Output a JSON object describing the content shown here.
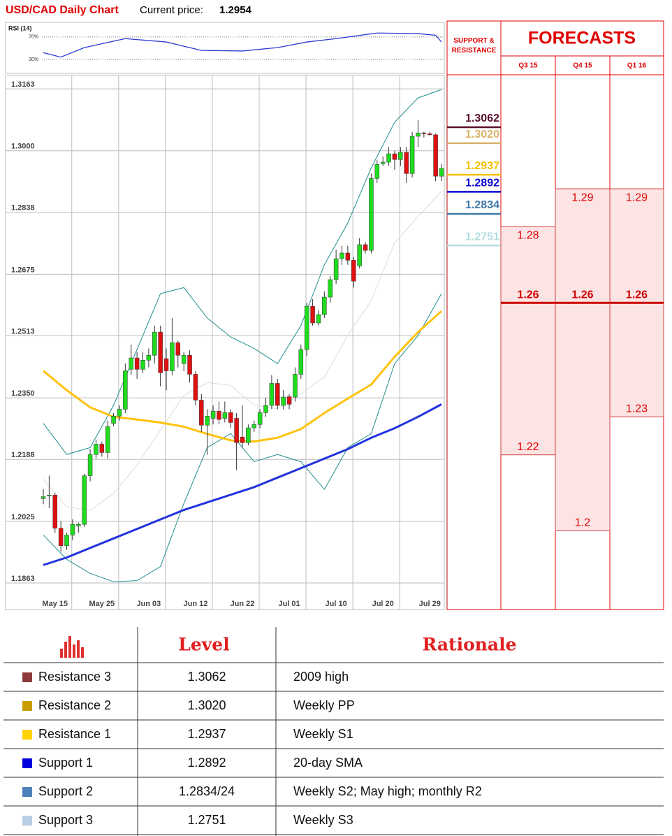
{
  "header": {
    "title": "USD/CAD Daily Chart",
    "price_label": "Current price:",
    "price": "1.2954"
  },
  "chart_data": [
    {
      "type": "line",
      "title": "RSI (14)",
      "color": "#2b3bd0",
      "x": [
        0,
        3,
        7,
        14,
        21,
        27,
        34,
        40,
        45,
        50,
        57,
        64,
        67,
        68
      ],
      "values": [
        42,
        34,
        51,
        67,
        61,
        46,
        45,
        51,
        61,
        67,
        77,
        76,
        73,
        61
      ],
      "xlim": [
        0,
        68
      ],
      "ylim": [
        5,
        96
      ],
      "yticks": [
        {
          "value": 70,
          "label": "70%"
        },
        {
          "value": 30,
          "label": "30%"
        }
      ]
    },
    {
      "type": "candlestick",
      "up_color": "#1fdc1f",
      "down_color": "#e01010",
      "grid": true,
      "categories": [
        null,
        null,
        "May 15",
        null,
        null,
        null,
        null,
        null,
        null,
        null,
        "May 25",
        null,
        null,
        null,
        null,
        null,
        null,
        null,
        "Jun 03",
        null,
        null,
        null,
        null,
        null,
        null,
        null,
        "Jun 12",
        null,
        null,
        null,
        null,
        null,
        null,
        null,
        "Jun 22",
        null,
        null,
        null,
        null,
        null,
        null,
        null,
        "Jul 01",
        null,
        null,
        null,
        null,
        null,
        null,
        null,
        "Jul 10",
        null,
        null,
        null,
        null,
        null,
        null,
        null,
        "Jul 20",
        null,
        null,
        null,
        null,
        null,
        null,
        null,
        "Jul 29",
        null,
        null
      ],
      "open": [
        1.2085,
        1.2092,
        1.2094,
        1.2007,
        1.1961,
        1.1989,
        1.2013,
        1.2017,
        1.2145,
        1.2201,
        1.2228,
        1.2206,
        1.2283,
        1.2302,
        1.232,
        1.2425,
        1.2455,
        1.2425,
        1.2449,
        1.2462,
        1.2523,
        1.2453,
        1.2421,
        1.2495,
        1.244,
        1.2462,
        1.2412,
        1.2344,
        1.2278,
        1.2296,
        1.2315,
        1.2296,
        1.2311,
        1.2296,
        1.2247,
        1.2232,
        1.2271,
        1.228,
        1.2311,
        1.233,
        1.2388,
        1.233,
        1.2353,
        1.2352,
        1.2412,
        1.2477,
        1.2591,
        1.2547,
        1.2569,
        1.2615,
        1.2661,
        1.2716,
        1.2731,
        1.2712,
        1.2697,
        1.2753,
        1.2738,
        1.2927,
        1.2966,
        1.297,
        1.2992,
        1.2977,
        1.2996,
        1.294,
        1.3038,
        1.3047,
        1.3045,
        1.3042,
        1.2933
      ],
      "high": [
        1.211,
        1.2145,
        1.21,
        1.2025,
        1.1995,
        1.203,
        1.2022,
        1.215,
        1.2215,
        1.224,
        1.2235,
        1.229,
        1.231,
        1.233,
        1.244,
        1.249,
        1.247,
        1.247,
        1.248,
        1.254,
        1.254,
        1.248,
        1.256,
        1.25,
        1.247,
        1.2475,
        1.242,
        1.236,
        1.232,
        1.233,
        1.234,
        1.234,
        1.232,
        1.231,
        1.233,
        1.228,
        1.229,
        1.232,
        1.235,
        1.241,
        1.24,
        1.237,
        1.236,
        1.243,
        1.249,
        1.26,
        1.261,
        1.258,
        1.263,
        1.267,
        1.274,
        1.275,
        1.275,
        1.272,
        1.277,
        1.276,
        1.294,
        1.2975,
        1.2985,
        1.301,
        1.3,
        1.301,
        1.301,
        1.305,
        1.308,
        1.305,
        1.305,
        1.3045,
        1.2965
      ],
      "low": [
        1.207,
        1.206,
        1.1995,
        1.1945,
        1.195,
        1.1975,
        1.1995,
        1.201,
        1.213,
        1.219,
        1.2195,
        1.219,
        1.2275,
        1.229,
        1.231,
        1.241,
        1.24,
        1.2415,
        1.243,
        1.244,
        1.238,
        1.237,
        1.241,
        1.243,
        1.242,
        1.239,
        1.233,
        1.226,
        1.22,
        1.228,
        1.228,
        1.2285,
        1.227,
        1.216,
        1.222,
        1.2225,
        1.226,
        1.227,
        1.23,
        1.232,
        1.232,
        1.232,
        1.232,
        1.234,
        1.24,
        1.246,
        1.254,
        1.254,
        1.256,
        1.26,
        1.265,
        1.27,
        1.27,
        1.264,
        1.269,
        1.273,
        1.273,
        1.2915,
        1.296,
        1.296,
        1.295,
        1.296,
        1.2915,
        1.293,
        1.301,
        1.3035,
        1.304,
        1.292,
        1.292
      ],
      "close": [
        1.209,
        1.2094,
        1.2007,
        1.1961,
        1.1989,
        1.2017,
        1.2017,
        1.2145,
        1.2201,
        1.2228,
        1.2206,
        1.2274,
        1.2302,
        1.232,
        1.2421,
        1.2455,
        1.2425,
        1.2449,
        1.2462,
        1.2523,
        1.2416,
        1.2421,
        1.2495,
        1.2462,
        1.2462,
        1.2412,
        1.2344,
        1.2278,
        1.2302,
        1.2315,
        1.2293,
        1.2311,
        1.2285,
        1.2232,
        1.2232,
        1.2271,
        1.228,
        1.2311,
        1.233,
        1.2388,
        1.233,
        1.2352,
        1.2333,
        1.2412,
        1.2477,
        1.2591,
        1.2547,
        1.2569,
        1.2615,
        1.2661,
        1.2716,
        1.2731,
        1.2712,
        1.2657,
        1.2753,
        1.2738,
        1.2927,
        1.2964,
        1.297,
        1.2992,
        1.2977,
        1.2996,
        1.294,
        1.3038,
        1.3047,
        1.3045,
        1.3042,
        1.2933,
        1.2954
      ],
      "lines": [
        {
          "color": "#dcdcdc",
          "width": 1,
          "x": [
            0,
            4,
            8,
            12,
            16,
            20,
            24,
            28,
            32,
            36,
            40,
            44,
            48,
            52,
            56,
            60,
            64,
            68
          ],
          "values": [
            1.2136,
            1.2063,
            1.2054,
            1.2098,
            1.2173,
            1.2265,
            1.2356,
            1.239,
            1.2383,
            1.2331,
            1.2321,
            1.2361,
            1.2405,
            1.2515,
            1.2606,
            1.2758,
            1.2827,
            1.2893
          ]
        },
        {
          "color": "#1f8c8c",
          "width": 1,
          "x": [
            0,
            4,
            8,
            12,
            16,
            20,
            24,
            28,
            32,
            36,
            40,
            44,
            48,
            52,
            56,
            60,
            64,
            68
          ],
          "values": [
            1.2283,
            1.2201,
            1.2219,
            1.233,
            1.2477,
            1.2624,
            1.264,
            1.256,
            1.251,
            1.248,
            1.244,
            1.254,
            1.27,
            1.281,
            1.2955,
            1.3075,
            1.3139,
            1.3161
          ]
        },
        {
          "color": "#1f8c8c",
          "width": 1,
          "x": [
            0,
            4,
            8,
            12,
            16,
            20,
            24,
            28,
            32,
            36,
            40,
            44,
            48,
            52,
            56,
            60,
            64,
            68
          ],
          "values": [
            1.1989,
            1.1925,
            1.1888,
            1.1866,
            1.1869,
            1.1906,
            1.2072,
            1.2219,
            1.2256,
            1.2182,
            1.2201,
            1.2182,
            1.2109,
            1.2219,
            1.2256,
            1.244,
            1.2514,
            1.2624
          ]
        },
        {
          "color": "#ffc20e",
          "width": 3,
          "x": [
            0,
            4,
            8,
            12,
            16,
            20,
            24,
            28,
            32,
            36,
            40,
            44,
            48,
            52,
            56,
            60,
            64,
            68
          ],
          "values": [
            1.2421,
            1.237,
            1.2325,
            1.23,
            1.2293,
            1.2285,
            1.2274,
            1.2255,
            1.2238,
            1.2235,
            1.2245,
            1.2268,
            1.231,
            1.2348,
            1.2385,
            1.2458,
            1.2523,
            1.2578
          ]
        },
        {
          "color": "#2233dd",
          "width": 3,
          "x": [
            0,
            4,
            8,
            12,
            16,
            20,
            24,
            28,
            32,
            36,
            40,
            44,
            48,
            52,
            56,
            60,
            64,
            68
          ],
          "values": [
            1.191,
            1.193,
            1.1955,
            1.198,
            1.2005,
            1.203,
            1.2055,
            1.2075,
            1.2095,
            1.2115,
            1.214,
            1.2165,
            1.219,
            1.2215,
            1.2245,
            1.227,
            1.23,
            1.2333
          ]
        }
      ],
      "ylim": [
        1.1793,
        1.3176
      ],
      "yticks": [
        1.3163,
        {
          "value": 1.3,
          "label": "1.3000"
        },
        1.2838,
        1.2675,
        1.2513,
        {
          "value": 1.235,
          "label": "1.2350"
        },
        1.2188,
        1.2025,
        1.1863
      ]
    },
    {
      "type": "forecast",
      "sr_title": "SUPPORT & RESISTANCE",
      "title": "FORECASTS",
      "levels": {
        "values": [
          1.3062,
          1.302,
          1.2937,
          1.2892,
          1.2834,
          1.2751
        ],
        "value_labels": [
          "1.3062",
          "1.3020",
          "1.2937",
          "1.2892",
          "1.2834",
          "1.2751"
        ],
        "colors": [
          "#5c1030",
          "#d9b26a",
          "#f2c200",
          "#0a0ad0",
          "#3f78a6",
          "#b5dde0"
        ]
      },
      "categories": [
        "Q3 15",
        "Q4 15",
        "Q1 16"
      ],
      "high": [
        1.28,
        1.29,
        1.29
      ],
      "mid": [
        1.26,
        1.26,
        1.26
      ],
      "low": [
        1.22,
        1.2,
        1.23
      ],
      "ylim": [
        1.1793,
        1.3176
      ]
    }
  ],
  "table": {
    "header": [
      "Level",
      "Rationale"
    ],
    "rows": [
      {
        "color": "#8e3b3b",
        "name": "Resistance 3",
        "level": "1.3062",
        "rationale": "2009 high"
      },
      {
        "color": "#c99d00",
        "name": "Resistance 2",
        "level": "1.3020",
        "rationale": "Weekly PP"
      },
      {
        "color": "#ffd200",
        "name": "Resistance 1",
        "level": "1.2937",
        "rationale": "Weekly S1"
      },
      {
        "color": "#0000dd",
        "name": "Support 1",
        "level": "1.2892",
        "rationale": "20-day SMA"
      },
      {
        "color": "#4f81bd",
        "name": "Support 2",
        "level": "1.2834/24",
        "rationale": "Weekly S2; May high; monthly R2"
      },
      {
        "color": "#b9cde5",
        "name": "Support 3",
        "level": "1.2751",
        "rationale": "Weekly S3"
      }
    ]
  }
}
